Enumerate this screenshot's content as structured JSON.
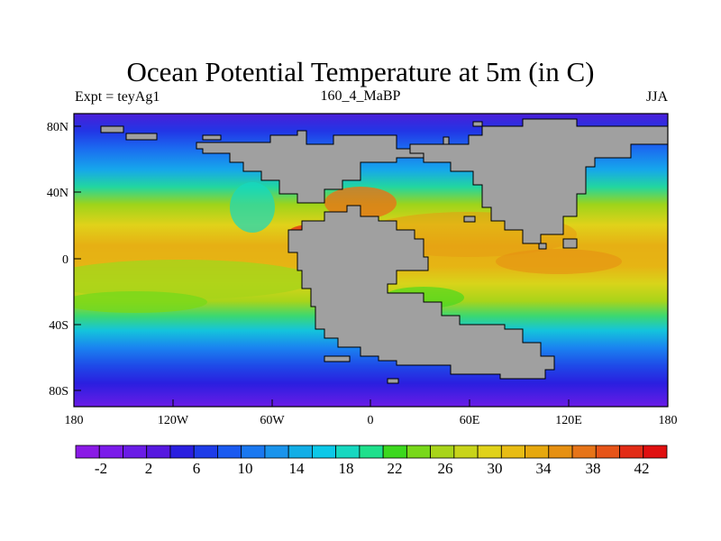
{
  "title": "Ocean Potential Temperature at 5m (in C)",
  "subtitle_left": "Expt = teyAg1",
  "subtitle_center": "160_4_MaBP",
  "subtitle_right": "JJA",
  "x_ticks": [
    "180",
    "120W",
    "60W",
    "0",
    "60E",
    "120E",
    "180"
  ],
  "y_ticks": [
    "80N",
    "40N",
    "0",
    "40S",
    "80S"
  ],
  "colorbar_labels": [
    "-2",
    "2",
    "6",
    "10",
    "14",
    "18",
    "22",
    "26",
    "30",
    "34",
    "38",
    "42"
  ],
  "colorbar_colors": [
    "#8a1ae6",
    "#7b1bea",
    "#6a1ce6",
    "#5618e0",
    "#2a1fe0",
    "#1e3ce8",
    "#1a5af0",
    "#1a78f0",
    "#1a94ec",
    "#12aee6",
    "#0cc8e8",
    "#16d8c0",
    "#1ee08c",
    "#3cd81e",
    "#78d81a",
    "#a8d41a",
    "#c8d41a",
    "#e0d21a",
    "#e8bc14",
    "#e6a80e",
    "#e69012",
    "#e67418",
    "#e65418",
    "#e22c16",
    "#e01010"
  ]
}
